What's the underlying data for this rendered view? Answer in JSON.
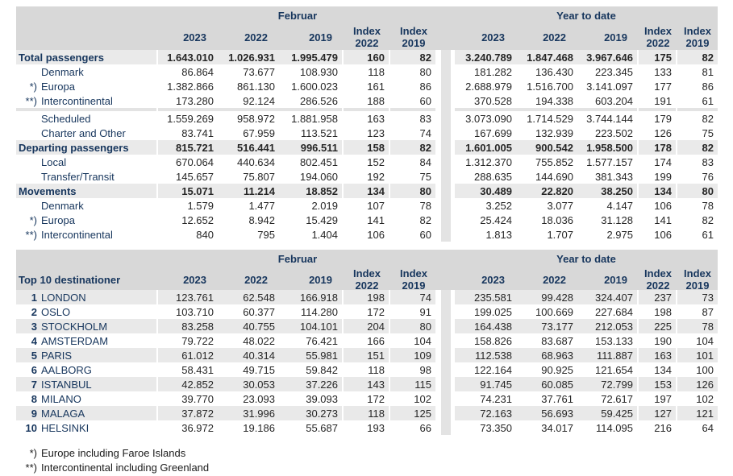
{
  "colors": {
    "header_band": "#d8d8d8",
    "section_row": "#eaeaea",
    "stripe_row": "#e9e9e9",
    "separator": "#e3e3e3",
    "label_text": "#17365d",
    "number_text": "#262626"
  },
  "chart_data": [
    {
      "type": "table",
      "label_header": "",
      "group_headers": [
        "Februar",
        "Year to date"
      ],
      "sub_headers": [
        "2023",
        "2022",
        "2019",
        [
          "Index",
          "2022"
        ],
        [
          "Index",
          "2019"
        ]
      ],
      "rows": [
        {
          "prefix": "",
          "label": "Total passengers",
          "emphasis": true,
          "values": [
            "1.643.010",
            "1.026.931",
            "1.995.479",
            "160",
            "82",
            "3.240.789",
            "1.847.468",
            "3.967.646",
            "175",
            "82"
          ]
        },
        {
          "prefix": "",
          "label": "Denmark",
          "values": [
            "86.864",
            "73.677",
            "108.930",
            "118",
            "80",
            "181.282",
            "136.430",
            "223.345",
            "133",
            "81"
          ]
        },
        {
          "prefix": "*)",
          "label": "Europa",
          "values": [
            "1.382.866",
            "861.130",
            "1.600.023",
            "161",
            "86",
            "2.688.979",
            "1.516.700",
            "3.141.097",
            "177",
            "86"
          ]
        },
        {
          "prefix": "**)",
          "label": "Intercontinental",
          "values": [
            "173.280",
            "92.124",
            "286.526",
            "188",
            "60",
            "370.528",
            "194.338",
            "603.204",
            "191",
            "61"
          ]
        },
        {
          "separator": true
        },
        {
          "prefix": "",
          "label": "Scheduled",
          "values": [
            "1.559.269",
            "958.972",
            "1.881.958",
            "163",
            "83",
            "3.073.090",
            "1.714.529",
            "3.744.144",
            "179",
            "82"
          ]
        },
        {
          "prefix": "",
          "label": "Charter and Other",
          "values": [
            "83.741",
            "67.959",
            "113.521",
            "123",
            "74",
            "167.699",
            "132.939",
            "223.502",
            "126",
            "75"
          ]
        },
        {
          "prefix": "",
          "label": "Departing passengers",
          "emphasis": true,
          "values": [
            "815.721",
            "516.441",
            "996.511",
            "158",
            "82",
            "1.601.005",
            "900.542",
            "1.958.500",
            "178",
            "82"
          ]
        },
        {
          "prefix": "",
          "label": "Local",
          "values": [
            "670.064",
            "440.634",
            "802.451",
            "152",
            "84",
            "1.312.370",
            "755.852",
            "1.577.157",
            "174",
            "83"
          ]
        },
        {
          "prefix": "",
          "label": "Transfer/Transit",
          "values": [
            "145.657",
            "75.807",
            "194.060",
            "192",
            "75",
            "288.635",
            "144.690",
            "381.343",
            "199",
            "76"
          ]
        },
        {
          "prefix": "",
          "label": "Movements",
          "emphasis": true,
          "values": [
            "15.071",
            "11.214",
            "18.852",
            "134",
            "80",
            "30.489",
            "22.820",
            "38.250",
            "134",
            "80"
          ]
        },
        {
          "prefix": "",
          "label": "Denmark",
          "values": [
            "1.579",
            "1.477",
            "2.019",
            "107",
            "78",
            "3.252",
            "3.077",
            "4.147",
            "106",
            "78"
          ]
        },
        {
          "prefix": "*)",
          "label": "Europa",
          "values": [
            "12.652",
            "8.942",
            "15.429",
            "141",
            "82",
            "25.424",
            "18.036",
            "31.128",
            "141",
            "82"
          ]
        },
        {
          "prefix": "**)",
          "label": "Intercontinental",
          "values": [
            "840",
            "795",
            "1.404",
            "106",
            "60",
            "1.813",
            "1.707",
            "2.975",
            "106",
            "61"
          ]
        }
      ]
    },
    {
      "type": "table",
      "label_header": "Top 10 destinationer",
      "group_headers": [
        "Februar",
        "Year to date"
      ],
      "sub_headers": [
        "2023",
        "2022",
        "2019",
        [
          "Index",
          "2022"
        ],
        [
          "Index",
          "2019"
        ]
      ],
      "rows": [
        {
          "prefix": "1",
          "label": "LONDON",
          "striped": true,
          "values": [
            "123.761",
            "62.548",
            "166.918",
            "198",
            "74",
            "235.581",
            "99.428",
            "324.407",
            "237",
            "73"
          ]
        },
        {
          "prefix": "2",
          "label": "OSLO",
          "values": [
            "103.710",
            "60.377",
            "114.280",
            "172",
            "91",
            "199.025",
            "100.669",
            "227.684",
            "198",
            "87"
          ]
        },
        {
          "prefix": "3",
          "label": "STOCKHOLM",
          "striped": true,
          "values": [
            "83.258",
            "40.755",
            "104.101",
            "204",
            "80",
            "164.438",
            "73.177",
            "212.053",
            "225",
            "78"
          ]
        },
        {
          "prefix": "4",
          "label": "AMSTERDAM",
          "values": [
            "79.722",
            "48.022",
            "76.421",
            "166",
            "104",
            "158.826",
            "83.687",
            "153.133",
            "190",
            "104"
          ]
        },
        {
          "prefix": "5",
          "label": "PARIS",
          "striped": true,
          "values": [
            "61.012",
            "40.314",
            "55.981",
            "151",
            "109",
            "112.538",
            "68.963",
            "111.887",
            "163",
            "101"
          ]
        },
        {
          "prefix": "6",
          "label": "AALBORG",
          "values": [
            "58.431",
            "49.715",
            "59.842",
            "118",
            "98",
            "122.164",
            "90.925",
            "121.654",
            "134",
            "100"
          ]
        },
        {
          "prefix": "7",
          "label": "ISTANBUL",
          "striped": true,
          "values": [
            "42.852",
            "30.053",
            "37.226",
            "143",
            "115",
            "91.745",
            "60.085",
            "72.799",
            "153",
            "126"
          ]
        },
        {
          "prefix": "8",
          "label": "MILANO",
          "values": [
            "39.770",
            "23.093",
            "39.093",
            "172",
            "102",
            "74.231",
            "37.761",
            "72.617",
            "197",
            "102"
          ]
        },
        {
          "prefix": "9",
          "label": "MALAGA",
          "striped": true,
          "values": [
            "37.872",
            "31.996",
            "30.273",
            "118",
            "125",
            "72.163",
            "56.693",
            "59.425",
            "127",
            "121"
          ]
        },
        {
          "prefix": "10",
          "label": "HELSINKI",
          "values": [
            "36.972",
            "19.186",
            "55.687",
            "193",
            "66",
            "73.350",
            "34.017",
            "114.095",
            "216",
            "64"
          ]
        }
      ]
    }
  ],
  "footnotes": [
    {
      "prefix": "*)",
      "text": "Europe including Faroe Islands"
    },
    {
      "prefix": "**)",
      "text": "Intercontinental including Greenland"
    }
  ]
}
